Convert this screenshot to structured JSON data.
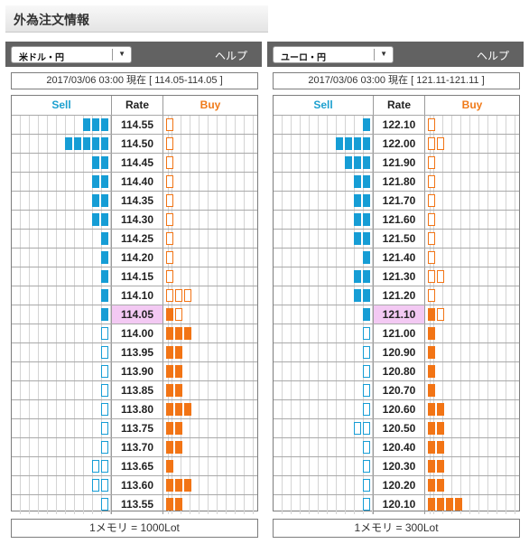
{
  "page_title": "外為注文情報",
  "panels": [
    {
      "pair": "米ドル・円",
      "help": "ヘルプ",
      "timestamp": "2017/03/06  03:00 現在 [ 114.05-114.05 ]",
      "unit": "1メモリ = 1000Lot",
      "headers": {
        "sell": "Sell",
        "rate": "Rate",
        "buy": "Buy"
      },
      "current_rate": "114.05"
    },
    {
      "pair": "ユーロ・円",
      "help": "ヘルプ",
      "timestamp": "2017/03/06  03:00 現在 [ 121.11-121.11 ]",
      "unit": "1メモリ = 300Lot",
      "headers": {
        "sell": "Sell",
        "rate": "Rate",
        "buy": "Buy"
      },
      "current_rate": "121.10"
    }
  ],
  "chart_data": [
    {
      "type": "table",
      "title": "米ドル・円",
      "columns": [
        "Sell",
        "Rate",
        "Buy"
      ],
      "rows": [
        {
          "rate": "114.55",
          "sell": 3,
          "sell_filled": true,
          "buy": 1,
          "buy_filled": false
        },
        {
          "rate": "114.50",
          "sell": 5,
          "sell_filled": true,
          "buy": 1,
          "buy_filled": false
        },
        {
          "rate": "114.45",
          "sell": 2,
          "sell_filled": true,
          "buy": 1,
          "buy_filled": false
        },
        {
          "rate": "114.40",
          "sell": 2,
          "sell_filled": true,
          "buy": 1,
          "buy_filled": false
        },
        {
          "rate": "114.35",
          "sell": 2,
          "sell_filled": true,
          "buy": 1,
          "buy_filled": false
        },
        {
          "rate": "114.30",
          "sell": 2,
          "sell_filled": true,
          "buy": 1,
          "buy_filled": false
        },
        {
          "rate": "114.25",
          "sell": 1,
          "sell_filled": true,
          "buy": 1,
          "buy_filled": false
        },
        {
          "rate": "114.20",
          "sell": 1,
          "sell_filled": true,
          "buy": 1,
          "buy_filled": false
        },
        {
          "rate": "114.15",
          "sell": 1,
          "sell_filled": true,
          "buy": 1,
          "buy_filled": false
        },
        {
          "rate": "114.10",
          "sell": 1,
          "sell_filled": true,
          "buy": 3,
          "buy_filled": false
        },
        {
          "rate": "114.05",
          "sell": 1,
          "sell_filled": true,
          "buy": 1,
          "buy_filled": true,
          "buy_extra_empty": 1
        },
        {
          "rate": "114.00",
          "sell": 1,
          "sell_filled": false,
          "buy": 3,
          "buy_filled": true
        },
        {
          "rate": "113.95",
          "sell": 1,
          "sell_filled": false,
          "buy": 2,
          "buy_filled": true
        },
        {
          "rate": "113.90",
          "sell": 1,
          "sell_filled": false,
          "buy": 2,
          "buy_filled": true
        },
        {
          "rate": "113.85",
          "sell": 1,
          "sell_filled": false,
          "buy": 2,
          "buy_filled": true
        },
        {
          "rate": "113.80",
          "sell": 1,
          "sell_filled": false,
          "buy": 3,
          "buy_filled": true
        },
        {
          "rate": "113.75",
          "sell": 1,
          "sell_filled": false,
          "buy": 2,
          "buy_filled": true
        },
        {
          "rate": "113.70",
          "sell": 1,
          "sell_filled": false,
          "buy": 2,
          "buy_filled": true
        },
        {
          "rate": "113.65",
          "sell": 2,
          "sell_filled": false,
          "buy": 1,
          "buy_filled": true
        },
        {
          "rate": "113.60",
          "sell": 2,
          "sell_filled": false,
          "buy": 3,
          "buy_filled": true
        },
        {
          "rate": "113.55",
          "sell": 1,
          "sell_filled": false,
          "buy": 2,
          "buy_filled": true
        }
      ]
    },
    {
      "type": "table",
      "title": "ユーロ・円",
      "columns": [
        "Sell",
        "Rate",
        "Buy"
      ],
      "rows": [
        {
          "rate": "122.10",
          "sell": 1,
          "sell_filled": true,
          "buy": 1,
          "buy_filled": false
        },
        {
          "rate": "122.00",
          "sell": 4,
          "sell_filled": true,
          "buy": 2,
          "buy_filled": false
        },
        {
          "rate": "121.90",
          "sell": 3,
          "sell_filled": true,
          "buy": 1,
          "buy_filled": false
        },
        {
          "rate": "121.80",
          "sell": 2,
          "sell_filled": true,
          "buy": 1,
          "buy_filled": false
        },
        {
          "rate": "121.70",
          "sell": 2,
          "sell_filled": true,
          "buy": 1,
          "buy_filled": false
        },
        {
          "rate": "121.60",
          "sell": 2,
          "sell_filled": true,
          "buy": 1,
          "buy_filled": false
        },
        {
          "rate": "121.50",
          "sell": 2,
          "sell_filled": true,
          "buy": 1,
          "buy_filled": false
        },
        {
          "rate": "121.40",
          "sell": 1,
          "sell_filled": true,
          "buy": 1,
          "buy_filled": false
        },
        {
          "rate": "121.30",
          "sell": 2,
          "sell_filled": true,
          "buy": 2,
          "buy_filled": false
        },
        {
          "rate": "121.20",
          "sell": 2,
          "sell_filled": true,
          "buy": 1,
          "buy_filled": false
        },
        {
          "rate": "121.10",
          "sell": 1,
          "sell_filled": true,
          "buy": 1,
          "buy_filled": true,
          "buy_extra_empty": 1
        },
        {
          "rate": "121.00",
          "sell": 1,
          "sell_filled": false,
          "buy": 1,
          "buy_filled": true
        },
        {
          "rate": "120.90",
          "sell": 1,
          "sell_filled": false,
          "buy": 1,
          "buy_filled": true
        },
        {
          "rate": "120.80",
          "sell": 1,
          "sell_filled": false,
          "buy": 1,
          "buy_filled": true
        },
        {
          "rate": "120.70",
          "sell": 1,
          "sell_filled": false,
          "buy": 1,
          "buy_filled": true
        },
        {
          "rate": "120.60",
          "sell": 1,
          "sell_filled": false,
          "buy": 2,
          "buy_filled": true
        },
        {
          "rate": "120.50",
          "sell": 2,
          "sell_filled": false,
          "buy": 2,
          "buy_filled": true
        },
        {
          "rate": "120.40",
          "sell": 1,
          "sell_filled": false,
          "buy": 2,
          "buy_filled": true
        },
        {
          "rate": "120.30",
          "sell": 1,
          "sell_filled": false,
          "buy": 2,
          "buy_filled": true
        },
        {
          "rate": "120.20",
          "sell": 1,
          "sell_filled": false,
          "buy": 2,
          "buy_filled": true
        },
        {
          "rate": "120.10",
          "sell": 1,
          "sell_filled": false,
          "buy": 4,
          "buy_filled": true
        }
      ]
    }
  ],
  "colors": {
    "sell": "#169dd5",
    "buy": "#f27415",
    "current_row": "#f3c9f3",
    "panel_bar": "#626262"
  }
}
